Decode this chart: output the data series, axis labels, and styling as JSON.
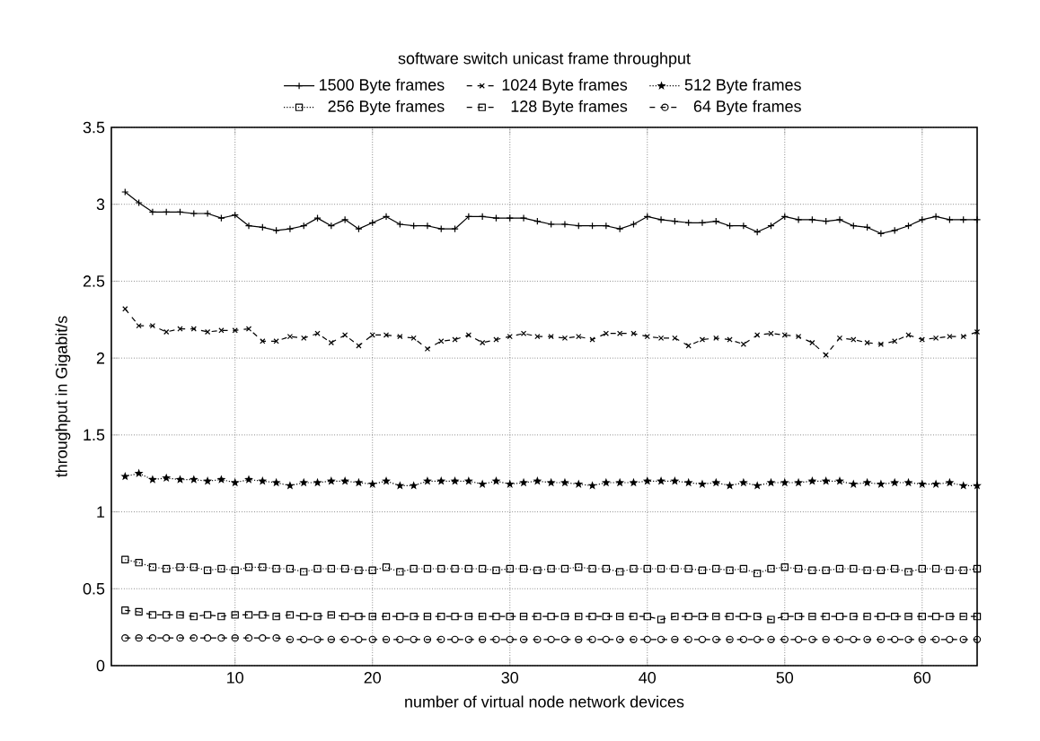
{
  "chart_data": {
    "type": "line",
    "title": "software switch unicast frame throughput",
    "xlabel": "number of virtual node network devices",
    "ylabel": "throughput in Gigabit/s",
    "x": [
      2,
      3,
      4,
      5,
      6,
      7,
      8,
      9,
      10,
      11,
      12,
      13,
      14,
      15,
      16,
      17,
      18,
      19,
      20,
      21,
      22,
      23,
      24,
      25,
      26,
      27,
      28,
      29,
      30,
      31,
      32,
      33,
      34,
      35,
      36,
      37,
      38,
      39,
      40,
      41,
      42,
      43,
      44,
      45,
      46,
      47,
      48,
      49,
      50,
      51,
      52,
      53,
      54,
      55,
      56,
      57,
      58,
      59,
      60,
      61,
      62,
      63,
      64
    ],
    "xlim": [
      1,
      64
    ],
    "xticks": [
      10,
      20,
      30,
      40,
      50,
      60
    ],
    "ylim": [
      0,
      3.5
    ],
    "yticks": [
      0,
      0.5,
      1,
      1.5,
      2,
      2.5,
      3,
      3.5
    ],
    "grid": true,
    "legend": "top",
    "series": [
      {
        "name": "1500 Byte frames",
        "color": "#000000",
        "marker": "plus",
        "line_style": "solid",
        "values": [
          3.08,
          3.01,
          2.95,
          2.95,
          2.95,
          2.94,
          2.94,
          2.91,
          2.93,
          2.86,
          2.85,
          2.83,
          2.84,
          2.86,
          2.91,
          2.86,
          2.9,
          2.84,
          2.88,
          2.92,
          2.87,
          2.86,
          2.86,
          2.84,
          2.84,
          2.92,
          2.92,
          2.91,
          2.91,
          2.91,
          2.89,
          2.87,
          2.87,
          2.86,
          2.86,
          2.86,
          2.84,
          2.87,
          2.92,
          2.9,
          2.89,
          2.88,
          2.88,
          2.89,
          2.86,
          2.86,
          2.82,
          2.86,
          2.92,
          2.9,
          2.9,
          2.89,
          2.9,
          2.86,
          2.85,
          2.81,
          2.83,
          2.86,
          2.9,
          2.92,
          2.9,
          2.9,
          2.9
        ]
      },
      {
        "name": "1024 Byte frames",
        "color": "#000000",
        "marker": "cross",
        "line_style": "dashed",
        "values": [
          2.32,
          2.21,
          2.21,
          2.17,
          2.19,
          2.19,
          2.17,
          2.18,
          2.18,
          2.19,
          2.11,
          2.11,
          2.14,
          2.13,
          2.16,
          2.1,
          2.15,
          2.08,
          2.15,
          2.15,
          2.14,
          2.13,
          2.06,
          2.11,
          2.12,
          2.15,
          2.1,
          2.12,
          2.14,
          2.16,
          2.14,
          2.14,
          2.13,
          2.14,
          2.12,
          2.16,
          2.16,
          2.16,
          2.14,
          2.13,
          2.13,
          2.08,
          2.12,
          2.13,
          2.12,
          2.09,
          2.15,
          2.16,
          2.15,
          2.14,
          2.1,
          2.02,
          2.13,
          2.12,
          2.1,
          2.09,
          2.11,
          2.15,
          2.12,
          2.13,
          2.14,
          2.14,
          2.17
        ]
      },
      {
        "name": "512 Byte frames",
        "color": "#000000",
        "marker": "star",
        "line_style": "dotted",
        "values": [
          1.23,
          1.25,
          1.21,
          1.22,
          1.21,
          1.21,
          1.2,
          1.21,
          1.19,
          1.21,
          1.2,
          1.19,
          1.17,
          1.19,
          1.19,
          1.2,
          1.2,
          1.19,
          1.18,
          1.2,
          1.17,
          1.17,
          1.2,
          1.2,
          1.2,
          1.2,
          1.18,
          1.2,
          1.18,
          1.19,
          1.2,
          1.19,
          1.19,
          1.18,
          1.17,
          1.19,
          1.19,
          1.19,
          1.2,
          1.2,
          1.2,
          1.19,
          1.18,
          1.19,
          1.17,
          1.19,
          1.17,
          1.19,
          1.19,
          1.19,
          1.2,
          1.2,
          1.2,
          1.18,
          1.19,
          1.18,
          1.19,
          1.19,
          1.18,
          1.18,
          1.19,
          1.17,
          1.17
        ]
      },
      {
        "name": "256 Byte frames",
        "color": "#000000",
        "marker": "square",
        "line_style": "dotted",
        "values": [
          0.69,
          0.67,
          0.64,
          0.63,
          0.64,
          0.64,
          0.62,
          0.63,
          0.62,
          0.64,
          0.64,
          0.63,
          0.63,
          0.61,
          0.63,
          0.63,
          0.63,
          0.62,
          0.62,
          0.64,
          0.61,
          0.63,
          0.63,
          0.63,
          0.63,
          0.63,
          0.63,
          0.62,
          0.63,
          0.63,
          0.62,
          0.63,
          0.63,
          0.64,
          0.63,
          0.63,
          0.61,
          0.63,
          0.63,
          0.63,
          0.63,
          0.63,
          0.62,
          0.63,
          0.62,
          0.63,
          0.6,
          0.63,
          0.64,
          0.63,
          0.62,
          0.62,
          0.63,
          0.63,
          0.62,
          0.62,
          0.63,
          0.61,
          0.63,
          0.63,
          0.62,
          0.62,
          0.63
        ]
      },
      {
        "name": "128 Byte frames",
        "color": "#000000",
        "marker": "square",
        "line_style": "dashed",
        "values": [
          0.36,
          0.35,
          0.33,
          0.33,
          0.33,
          0.32,
          0.33,
          0.32,
          0.33,
          0.33,
          0.33,
          0.32,
          0.33,
          0.32,
          0.32,
          0.33,
          0.32,
          0.32,
          0.32,
          0.32,
          0.32,
          0.32,
          0.32,
          0.32,
          0.32,
          0.32,
          0.32,
          0.32,
          0.32,
          0.32,
          0.32,
          0.32,
          0.32,
          0.32,
          0.32,
          0.32,
          0.32,
          0.32,
          0.32,
          0.3,
          0.32,
          0.32,
          0.32,
          0.32,
          0.32,
          0.32,
          0.32,
          0.3,
          0.32,
          0.32,
          0.32,
          0.32,
          0.32,
          0.32,
          0.32,
          0.32,
          0.32,
          0.32,
          0.32,
          0.32,
          0.32,
          0.32,
          0.32
        ]
      },
      {
        "name": "64 Byte frames",
        "color": "#000000",
        "marker": "circle",
        "line_style": "dashed",
        "values": [
          0.18,
          0.18,
          0.18,
          0.18,
          0.18,
          0.18,
          0.18,
          0.18,
          0.18,
          0.18,
          0.18,
          0.18,
          0.17,
          0.17,
          0.17,
          0.17,
          0.17,
          0.17,
          0.17,
          0.17,
          0.17,
          0.17,
          0.17,
          0.17,
          0.17,
          0.17,
          0.17,
          0.17,
          0.17,
          0.17,
          0.17,
          0.17,
          0.17,
          0.17,
          0.17,
          0.17,
          0.17,
          0.17,
          0.17,
          0.17,
          0.17,
          0.17,
          0.17,
          0.17,
          0.17,
          0.17,
          0.17,
          0.17,
          0.17,
          0.17,
          0.17,
          0.17,
          0.17,
          0.17,
          0.17,
          0.17,
          0.17,
          0.17,
          0.17,
          0.17,
          0.17,
          0.17,
          0.17
        ]
      }
    ]
  }
}
